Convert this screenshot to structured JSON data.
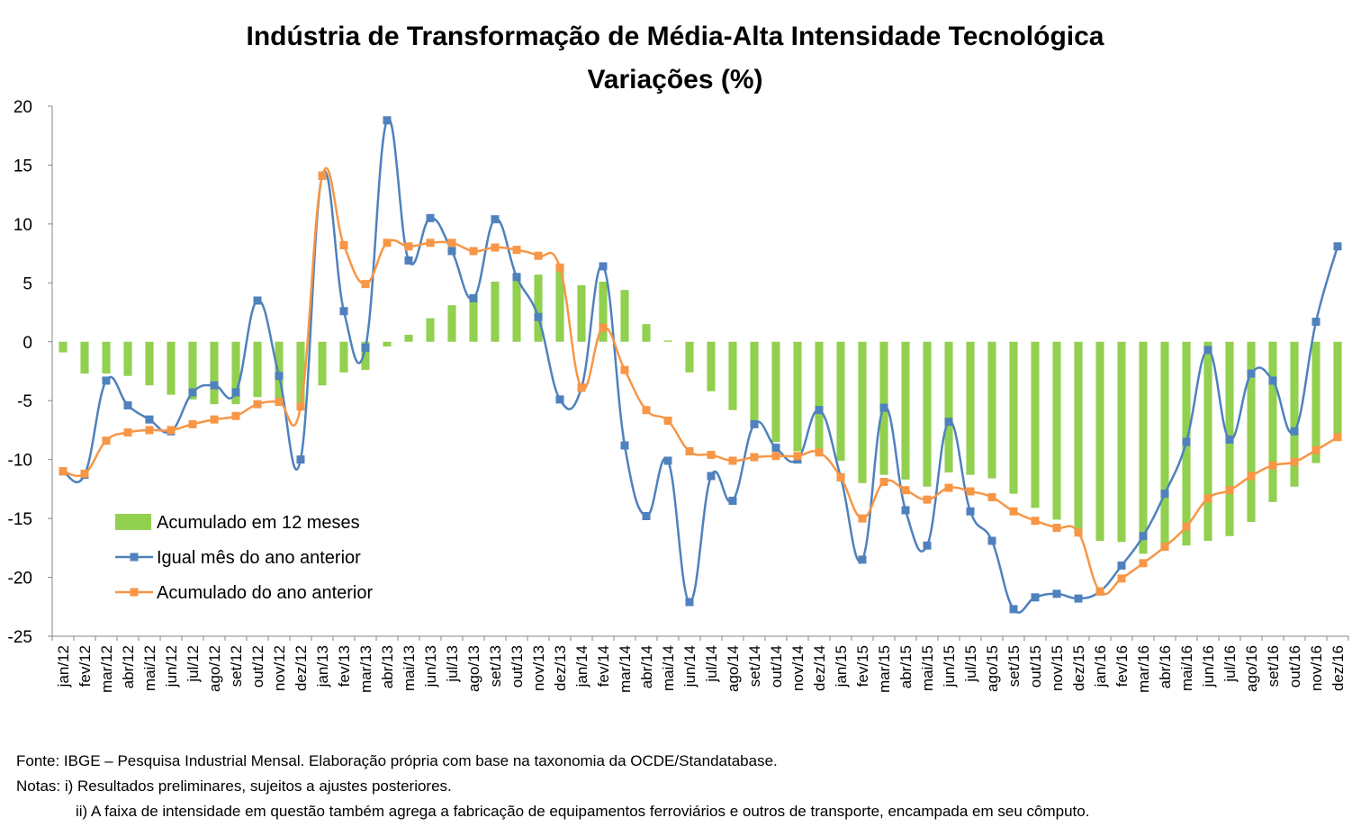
{
  "chart_data": {
    "type": "bar+line",
    "title": "Indústria de Transformação de Média-Alta Intensidade Tecnológica",
    "subtitle": "Variações (%)",
    "ylim": [
      -25,
      20
    ],
    "yticks": [
      20,
      15,
      10,
      5,
      0,
      -5,
      -10,
      -15,
      -20,
      -25
    ],
    "grid": false,
    "legend_position": "bottom-left",
    "categories": [
      "jan/12",
      "fev/12",
      "mar/12",
      "abr/12",
      "mai/12",
      "jun/12",
      "jul/12",
      "ago/12",
      "set/12",
      "out/12",
      "nov/12",
      "dez/12",
      "jan/13",
      "fev/13",
      "mar/13",
      "abr/13",
      "mai/13",
      "jun/13",
      "jul/13",
      "ago/13",
      "set/13",
      "out/13",
      "nov/13",
      "dez/13",
      "jan/14",
      "fev/14",
      "mar/14",
      "abr/14",
      "mai/14",
      "jun/14",
      "jul/14",
      "ago/14",
      "set/14",
      "out/14",
      "nov/14",
      "dez/14",
      "jan/15",
      "fev/15",
      "mar/15",
      "abr/15",
      "mai/15",
      "jun/15",
      "jul/15",
      "ago/15",
      "set/15",
      "out/15",
      "nov/15",
      "dez/15",
      "jan/16",
      "fev/16",
      "mar/16",
      "abr/16",
      "mai/16",
      "jun/16",
      "jul/16",
      "ago/16",
      "set/16",
      "out/16",
      "nov/16",
      "dez/16"
    ],
    "series": [
      {
        "name": "Acumulado em 12 meses",
        "kind": "bar",
        "color": "#92d050",
        "values": [
          -0.9,
          -2.7,
          -2.7,
          -2.9,
          -3.7,
          -4.5,
          -4.9,
          -5.3,
          -5.3,
          -4.7,
          -4.9,
          -5.3,
          -3.7,
          -2.6,
          -2.4,
          -0.4,
          0.6,
          2.0,
          3.1,
          4.0,
          5.1,
          5.7,
          5.7,
          6.2,
          4.8,
          5.1,
          4.4,
          1.5,
          0.1,
          -2.6,
          -4.2,
          -5.8,
          -7.2,
          -8.5,
          -9.3,
          -9.3,
          -10.1,
          -12.0,
          -11.3,
          -11.7,
          -12.3,
          -11.1,
          -11.3,
          -11.6,
          -12.9,
          -14.1,
          -15.1,
          -16.3,
          -16.9,
          -17.0,
          -18.0,
          -17.6,
          -17.3,
          -16.9,
          -16.5,
          -15.3,
          -13.6,
          -12.3,
          -10.3,
          -8.2
        ]
      },
      {
        "name": "Igual mês do ano anterior",
        "kind": "line",
        "color": "#4f81bd",
        "marker_color": "#4f81bd",
        "values": [
          -11.0,
          -11.3,
          -3.3,
          -5.4,
          -6.6,
          -7.6,
          -4.3,
          -3.7,
          -4.3,
          3.5,
          -2.9,
          -10.0,
          14.1,
          2.6,
          -0.5,
          18.8,
          6.9,
          10.5,
          7.7,
          3.7,
          10.4,
          5.5,
          2.1,
          -4.9,
          -3.9,
          6.4,
          -8.8,
          -14.8,
          -10.1,
          -22.1,
          -11.4,
          -13.5,
          -7.0,
          -9.0,
          -10.0,
          -5.8,
          -11.5,
          -18.5,
          -5.6,
          -14.3,
          -17.3,
          -6.8,
          -14.4,
          -16.9,
          -22.7,
          -21.7,
          -21.4,
          -21.8,
          -21.2,
          -19.0,
          -16.5,
          -12.9,
          -8.5,
          -0.7,
          -8.3,
          -2.7,
          -3.3,
          -7.6,
          1.7,
          8.1
        ]
      },
      {
        "name": "Acumulado do ano anterior",
        "kind": "line",
        "color": "#f79646",
        "marker_color": "#f79646",
        "values": [
          -11.0,
          -11.2,
          -8.4,
          -7.7,
          -7.5,
          -7.5,
          -7.0,
          -6.6,
          -6.3,
          -5.3,
          -5.1,
          -5.5,
          14.1,
          8.2,
          4.9,
          8.4,
          8.1,
          8.4,
          8.4,
          7.7,
          8.0,
          7.8,
          7.3,
          6.3,
          -3.9,
          1.2,
          -2.4,
          -5.8,
          -6.7,
          -9.3,
          -9.6,
          -10.1,
          -9.8,
          -9.7,
          -9.7,
          -9.4,
          -11.5,
          -15.0,
          -11.9,
          -12.6,
          -13.4,
          -12.4,
          -12.7,
          -13.2,
          -14.4,
          -15.2,
          -15.8,
          -16.2,
          -21.2,
          -20.1,
          -18.8,
          -17.4,
          -15.7,
          -13.3,
          -12.6,
          -11.4,
          -10.5,
          -10.2,
          -9.2,
          -8.1
        ]
      }
    ]
  },
  "footer": {
    "source": "Fonte: IBGE – Pesquisa Industrial Mensal. Elaboração própria com base na taxonomia da OCDE/Standatabase.",
    "note1": "Notas: i) Resultados preliminares,  sujeitos a ajustes posteriores.",
    "note2": "ii) A faixa de intensidade em questão também agrega a fabricação de equipamentos ferroviários e outros de transporte, encampada em seu cômputo."
  }
}
